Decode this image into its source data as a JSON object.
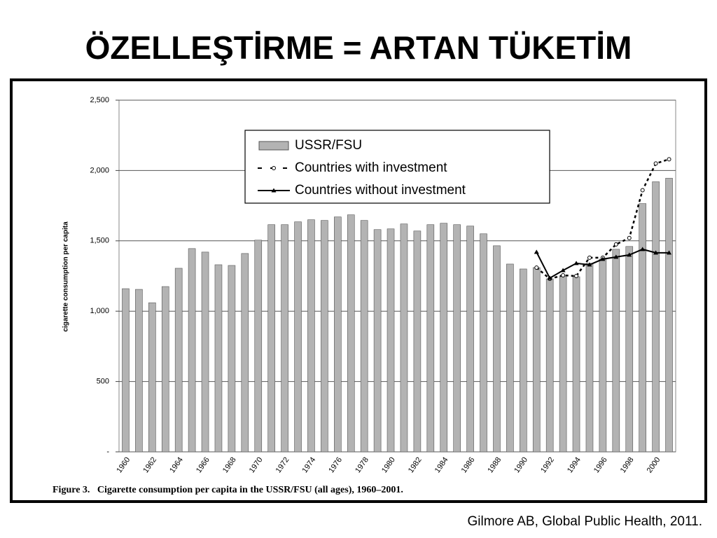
{
  "title": "ÖZELLEŞTİRME = ARTAN TÜKETİM",
  "source": "Gilmore AB, Global Public Health, 2011.",
  "chart_data": {
    "type": "bar",
    "ylabel": "cigarette consumption per capita",
    "caption": "Figure 3.   Cigarette consumption per capita in the USSR/FSU (all ages), 1960–2001.",
    "categories": [
      "1960",
      null,
      "1962",
      null,
      "1964",
      null,
      "1966",
      null,
      "1968",
      null,
      "1970",
      null,
      "1972",
      null,
      "1974",
      null,
      "1976",
      null,
      "1978",
      null,
      "1980",
      null,
      "1982",
      null,
      "1984",
      null,
      "1986",
      null,
      "1988",
      null,
      "1990",
      null,
      "1992",
      null,
      "1994",
      null,
      "1996",
      null,
      "1998",
      null,
      "2000",
      null
    ],
    "series": [
      {
        "name": "USSR/FSU",
        "type": "bar",
        "color": "#b3b3b3",
        "values": [
          1160,
          1155,
          1060,
          1175,
          1305,
          1445,
          1420,
          1330,
          1325,
          1410,
          1505,
          1615,
          1615,
          1635,
          1650,
          1645,
          1670,
          1685,
          1645,
          1580,
          1585,
          1620,
          1570,
          1615,
          1625,
          1615,
          1605,
          1550,
          1465,
          1335,
          1300,
          1310,
          1230,
          1250,
          1245,
          1340,
          1370,
          1440,
          1460,
          1765,
          1920,
          1945
        ]
      },
      {
        "name": "Countries with investment",
        "type": "line",
        "color": "#000000",
        "dash": "dashed",
        "marker": "circle",
        "values": [
          null,
          null,
          null,
          null,
          null,
          null,
          null,
          null,
          null,
          null,
          null,
          null,
          null,
          null,
          null,
          null,
          null,
          null,
          null,
          null,
          null,
          null,
          null,
          null,
          null,
          null,
          null,
          null,
          null,
          null,
          null,
          1310,
          1230,
          1255,
          1250,
          1380,
          1380,
          1475,
          1520,
          1860,
          2050,
          2080
        ]
      },
      {
        "name": "Countries without investment",
        "type": "line",
        "color": "#000000",
        "dash": "solid",
        "marker": "triangle",
        "values": [
          null,
          null,
          null,
          null,
          null,
          null,
          null,
          null,
          null,
          null,
          null,
          null,
          null,
          null,
          null,
          null,
          null,
          null,
          null,
          null,
          null,
          null,
          null,
          null,
          null,
          null,
          null,
          null,
          null,
          null,
          null,
          1420,
          1235,
          1290,
          1340,
          1330,
          1370,
          1385,
          1400,
          1440,
          1415,
          1415
        ]
      }
    ],
    "ylim": [
      0,
      2500
    ],
    "yticks": [
      {
        "value": 0,
        "label": "-"
      },
      500,
      {
        "value": 1000,
        "label": "1,000"
      },
      {
        "value": 1500,
        "label": "1,500"
      },
      {
        "value": 2000,
        "label": "2,000"
      },
      {
        "value": 2500,
        "label": "2,500"
      }
    ],
    "grid": true
  }
}
